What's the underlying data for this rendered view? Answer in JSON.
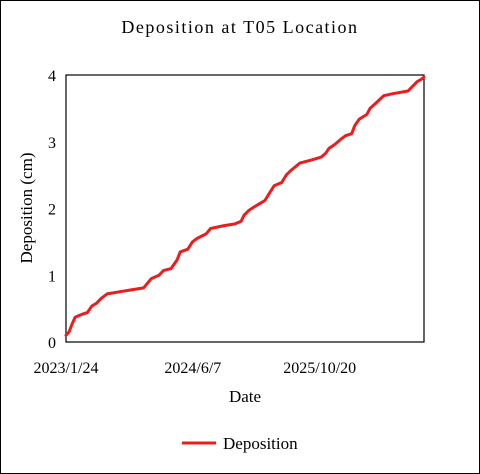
{
  "chart_data": {
    "type": "line",
    "title": "Deposition at T05 Location",
    "xlabel": "Date",
    "ylabel": "Deposition (cm)",
    "x_tick_labels": [
      "2023/1/24",
      "2024/6/7",
      "2025/10/20"
    ],
    "x_ticks": [
      "2023-01-24",
      "2024-06-07",
      "2025-10-20"
    ],
    "xlim": [
      "2023-01-24",
      "2026-12-05"
    ],
    "ylim": [
      0,
      4
    ],
    "y_ticks": [
      0,
      1,
      2,
      3,
      4
    ],
    "y_tick_labels": [
      "0",
      "1",
      "2",
      "3",
      "4"
    ],
    "grid": false,
    "legend": "bottom",
    "series": [
      {
        "name": "Deposition",
        "color": "#ee1c1c",
        "points": [
          [
            "2023-01-24",
            0.1
          ],
          [
            "2023-02-05",
            0.15
          ],
          [
            "2023-02-17",
            0.27
          ],
          [
            "2023-03-01",
            0.37
          ],
          [
            "2023-03-25",
            0.41
          ],
          [
            "2023-04-18",
            0.44
          ],
          [
            "2023-05-06",
            0.54
          ],
          [
            "2023-05-24",
            0.58
          ],
          [
            "2023-06-11",
            0.65
          ],
          [
            "2023-07-05",
            0.72
          ],
          [
            "2023-09-03",
            0.76
          ],
          [
            "2023-11-26",
            0.81
          ],
          [
            "2023-12-26",
            0.95
          ],
          [
            "2024-01-25",
            1.0
          ],
          [
            "2024-02-12",
            1.07
          ],
          [
            "2024-03-13",
            1.1
          ],
          [
            "2024-04-06",
            1.23
          ],
          [
            "2024-04-18",
            1.35
          ],
          [
            "2024-05-18",
            1.39
          ],
          [
            "2024-06-05",
            1.5
          ],
          [
            "2024-06-23",
            1.55
          ],
          [
            "2024-07-29",
            1.62
          ],
          [
            "2024-08-16",
            1.7
          ],
          [
            "2024-10-03",
            1.74
          ],
          [
            "2024-11-20",
            1.77
          ],
          [
            "2024-12-14",
            1.81
          ],
          [
            "2024-12-26",
            1.9
          ],
          [
            "2025-01-13",
            1.97
          ],
          [
            "2025-02-06",
            2.03
          ],
          [
            "2025-02-24",
            2.07
          ],
          [
            "2025-03-18",
            2.12
          ],
          [
            "2025-04-05",
            2.23
          ],
          [
            "2025-04-23",
            2.34
          ],
          [
            "2025-05-23",
            2.39
          ],
          [
            "2025-06-10",
            2.5
          ],
          [
            "2025-06-28",
            2.57
          ],
          [
            "2025-08-03",
            2.68
          ],
          [
            "2025-09-20",
            2.73
          ],
          [
            "2025-10-26",
            2.77
          ],
          [
            "2025-11-13",
            2.83
          ],
          [
            "2025-11-25",
            2.9
          ],
          [
            "2025-12-19",
            2.96
          ],
          [
            "2026-01-12",
            3.04
          ],
          [
            "2026-01-30",
            3.09
          ],
          [
            "2026-02-23",
            3.12
          ],
          [
            "2026-03-07",
            3.24
          ],
          [
            "2026-03-25",
            3.34
          ],
          [
            "2026-04-24",
            3.41
          ],
          [
            "2026-05-06",
            3.5
          ],
          [
            "2026-05-30",
            3.58
          ],
          [
            "2026-06-29",
            3.69
          ],
          [
            "2026-08-04",
            3.72
          ],
          [
            "2026-10-03",
            3.76
          ],
          [
            "2026-10-21",
            3.83
          ],
          [
            "2026-11-08",
            3.9
          ],
          [
            "2026-11-26",
            3.94
          ],
          [
            "2026-12-05",
            3.97
          ]
        ]
      }
    ]
  }
}
